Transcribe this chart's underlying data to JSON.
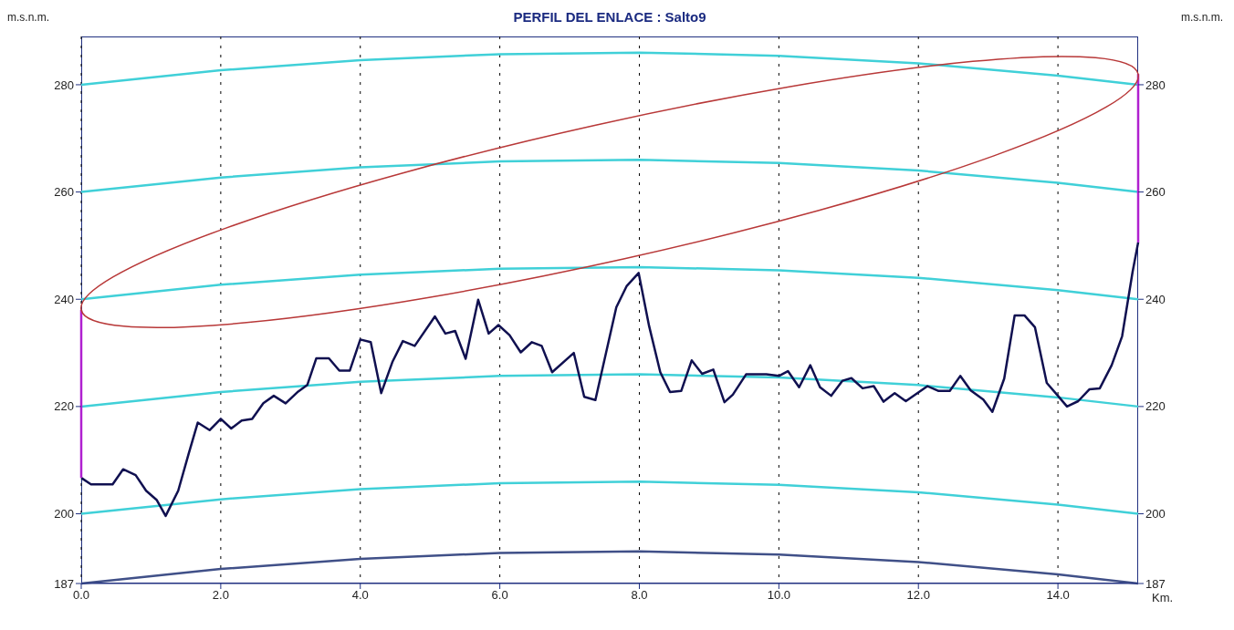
{
  "chart_data": {
    "type": "line",
    "title": "PERFIL DEL ENLACE : Salto9",
    "xlabel": "Km.",
    "ylabel": "m.s.n.m.",
    "y2label": "m.s.n.m.",
    "xlim": [
      0,
      15.15
    ],
    "xticks": [
      {
        "value": 0,
        "label": "0.0"
      },
      {
        "value": 2,
        "label": "2.0"
      },
      {
        "value": 4,
        "label": "4.0"
      },
      {
        "value": 6,
        "label": "6.0"
      },
      {
        "value": 8,
        "label": "8.0"
      },
      {
        "value": 10,
        "label": "10.0"
      },
      {
        "value": 12,
        "label": "12.0"
      },
      {
        "value": 14,
        "label": "14.0"
      }
    ],
    "ylim": [
      187,
      289
    ],
    "yticks": [
      187,
      200,
      220,
      240,
      260,
      280
    ],
    "y2lim": [
      187,
      289
    ],
    "y2ticks": [
      187,
      200,
      220,
      240,
      260,
      280
    ],
    "grid": true,
    "marker": "none",
    "series": [
      {
        "color": "#405088",
        "x": [
          0,
          2,
          4,
          6,
          8,
          10,
          12,
          14,
          15.15
        ],
        "values": [
          187,
          189.7,
          191.6,
          192.7,
          193,
          192.4,
          191,
          188.7,
          187
        ]
      },
      {
        "color": "#40d0d8",
        "x": [
          0,
          2,
          4,
          6,
          8,
          10,
          12,
          14,
          15.15
        ],
        "values": [
          200,
          202.7,
          204.6,
          205.7,
          206,
          205.4,
          204,
          201.7,
          200
        ]
      },
      {
        "color": "#40d0d8",
        "x": [
          0,
          2,
          4,
          6,
          8,
          10,
          12,
          14,
          15.15
        ],
        "values": [
          220,
          222.7,
          224.6,
          225.7,
          226,
          225.4,
          224,
          221.7,
          220
        ]
      },
      {
        "color": "#40d0d8",
        "x": [
          0,
          2,
          4,
          6,
          8,
          10,
          12,
          14,
          15.15
        ],
        "values": [
          240,
          242.7,
          244.6,
          245.7,
          246,
          245.4,
          244,
          241.7,
          240
        ]
      },
      {
        "color": "#40d0d8",
        "x": [
          0,
          2,
          4,
          6,
          8,
          10,
          12,
          14,
          15.15
        ],
        "values": [
          260,
          262.7,
          264.6,
          265.7,
          266,
          265.4,
          264,
          261.7,
          260
        ]
      },
      {
        "color": "#40d0d8",
        "x": [
          0,
          2,
          4,
          6,
          8,
          10,
          12,
          14,
          15.15
        ],
        "values": [
          280,
          282.7,
          284.6,
          285.7,
          286,
          285.4,
          284,
          281.7,
          280
        ]
      },
      {
        "color": "#101050",
        "x": [
          0,
          0.14,
          0.45,
          0.6,
          0.78,
          0.93,
          1.08,
          1.21,
          1.39,
          1.54,
          1.67,
          1.84,
          2,
          2.15,
          2.3,
          2.45,
          2.61,
          2.76,
          2.93,
          3.11,
          3.24,
          3.37,
          3.55,
          3.7,
          3.85,
          4,
          4.15,
          4.3,
          4.46,
          4.61,
          4.78,
          5.07,
          5.22,
          5.36,
          5.51,
          5.69,
          5.84,
          5.98,
          6.14,
          6.3,
          6.46,
          6.6,
          6.75,
          7.06,
          7.21,
          7.37,
          7.67,
          7.82,
          7.99,
          8.14,
          8.3,
          8.44,
          8.6,
          8.75,
          8.9,
          9.06,
          9.22,
          9.34,
          9.53,
          9.82,
          10,
          10.13,
          10.29,
          10.45,
          10.59,
          10.75,
          10.91,
          11.04,
          11.2,
          11.36,
          11.5,
          11.66,
          11.82,
          12.13,
          12.29,
          12.45,
          12.6,
          12.75,
          12.93,
          13.06,
          13.23,
          13.38,
          13.52,
          13.67,
          13.84,
          14,
          14.13,
          14.29,
          14.45,
          14.6,
          14.77,
          14.92,
          15.07,
          15.15
        ],
        "values": [
          206.7,
          205.5,
          205.5,
          208.3,
          207.2,
          204.3,
          202.6,
          199.6,
          204.3,
          211.2,
          217,
          215.6,
          217.7,
          215.9,
          217.4,
          217.7,
          220.6,
          222,
          220.6,
          222.8,
          224,
          229,
          229,
          226.7,
          226.7,
          232.5,
          232,
          222.5,
          228.3,
          232.2,
          231.3,
          236.8,
          233.6,
          234.1,
          228.9,
          239.9,
          233.6,
          235.2,
          233.3,
          230.1,
          232,
          231.3,
          226.4,
          230,
          221.8,
          221.2,
          238.5,
          242.5,
          244.9,
          235,
          226.4,
          222.7,
          222.9,
          228.6,
          226.1,
          226.9,
          220.8,
          222.2,
          226,
          226,
          225.7,
          226.6,
          223.6,
          227.7,
          223.6,
          222,
          224.8,
          225.3,
          223.4,
          223.8,
          220.9,
          222.5,
          221,
          223.8,
          222.9,
          222.9,
          225.7,
          223,
          221.3,
          219,
          225.2,
          237,
          237,
          234.8,
          224.4,
          222,
          220,
          221,
          223.2,
          223.4,
          227.7,
          233.1,
          245.1,
          250.6
        ]
      },
      {
        "color": "#b020d0",
        "x": [
          0,
          0
        ],
        "values": [
          206.7,
          238
        ]
      },
      {
        "color": "#b020d0",
        "axis": "y2",
        "x": [
          15.15,
          15.15
        ],
        "values": [
          250.6,
          282
        ]
      }
    ]
  }
}
